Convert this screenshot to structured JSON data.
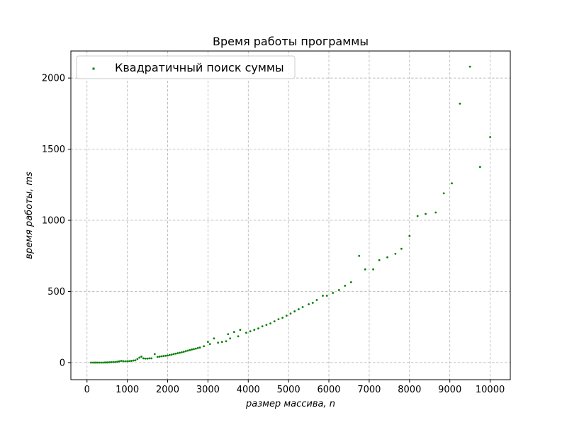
{
  "chart_data": {
    "type": "scatter",
    "title": "Время работы программы",
    "xlabel": "размер массива, n",
    "ylabel": "время работы, ms",
    "xlim": [
      -400,
      10500
    ],
    "ylim": [
      -120,
      2190
    ],
    "x_ticks": [
      0,
      1000,
      2000,
      3000,
      4000,
      5000,
      6000,
      7000,
      8000,
      9000,
      10000
    ],
    "y_ticks": [
      0,
      500,
      1000,
      1500,
      2000
    ],
    "grid": true,
    "legend_position": "top-left",
    "series": [
      {
        "name": "Квадратичный поиск суммы",
        "color": "#008000",
        "points": [
          [
            100,
            0
          ],
          [
            150,
            0
          ],
          [
            200,
            0
          ],
          [
            250,
            0
          ],
          [
            300,
            0
          ],
          [
            350,
            0
          ],
          [
            400,
            0
          ],
          [
            450,
            1
          ],
          [
            500,
            1
          ],
          [
            550,
            2
          ],
          [
            600,
            3
          ],
          [
            650,
            4
          ],
          [
            700,
            4
          ],
          [
            750,
            6
          ],
          [
            800,
            9
          ],
          [
            850,
            12
          ],
          [
            900,
            10
          ],
          [
            950,
            9
          ],
          [
            1000,
            10
          ],
          [
            1050,
            10
          ],
          [
            1100,
            12
          ],
          [
            1150,
            14
          ],
          [
            1200,
            16
          ],
          [
            1250,
            25
          ],
          [
            1300,
            35
          ],
          [
            1350,
            42
          ],
          [
            1400,
            30
          ],
          [
            1450,
            28
          ],
          [
            1500,
            28
          ],
          [
            1550,
            30
          ],
          [
            1600,
            30
          ],
          [
            1680,
            60
          ],
          [
            1750,
            40
          ],
          [
            1800,
            42
          ],
          [
            1850,
            44
          ],
          [
            1900,
            46
          ],
          [
            1950,
            48
          ],
          [
            2000,
            50
          ],
          [
            2050,
            53
          ],
          [
            2100,
            56
          ],
          [
            2150,
            60
          ],
          [
            2200,
            63
          ],
          [
            2250,
            66
          ],
          [
            2300,
            69
          ],
          [
            2350,
            72
          ],
          [
            2400,
            76
          ],
          [
            2450,
            80
          ],
          [
            2500,
            84
          ],
          [
            2550,
            88
          ],
          [
            2600,
            92
          ],
          [
            2650,
            95
          ],
          [
            2700,
            98
          ],
          [
            2750,
            102
          ],
          [
            2800,
            106
          ],
          [
            2900,
            115
          ],
          [
            3000,
            145
          ],
          [
            3050,
            130
          ],
          [
            3150,
            170
          ],
          [
            3250,
            140
          ],
          [
            3350,
            145
          ],
          [
            3450,
            150
          ],
          [
            3500,
            200
          ],
          [
            3550,
            170
          ],
          [
            3650,
            215
          ],
          [
            3750,
            185
          ],
          [
            3800,
            230
          ],
          [
            3950,
            210
          ],
          [
            4050,
            220
          ],
          [
            4150,
            230
          ],
          [
            4250,
            240
          ],
          [
            4350,
            255
          ],
          [
            4450,
            265
          ],
          [
            4550,
            275
          ],
          [
            4650,
            290
          ],
          [
            4750,
            305
          ],
          [
            4850,
            315
          ],
          [
            4950,
            330
          ],
          [
            5050,
            345
          ],
          [
            5150,
            360
          ],
          [
            5250,
            375
          ],
          [
            5350,
            390
          ],
          [
            5500,
            410
          ],
          [
            5600,
            420
          ],
          [
            5700,
            440
          ],
          [
            5850,
            470
          ],
          [
            5950,
            470
          ],
          [
            6100,
            490
          ],
          [
            6250,
            510
          ],
          [
            6400,
            540
          ],
          [
            6550,
            565
          ],
          [
            6750,
            750
          ],
          [
            6900,
            655
          ],
          [
            7100,
            655
          ],
          [
            7250,
            720
          ],
          [
            7450,
            740
          ],
          [
            7650,
            765
          ],
          [
            7800,
            800
          ],
          [
            8000,
            890
          ],
          [
            8200,
            1030
          ],
          [
            8400,
            1045
          ],
          [
            8650,
            1055
          ],
          [
            8850,
            1190
          ],
          [
            9050,
            1260
          ],
          [
            9250,
            1820
          ],
          [
            9500,
            2080
          ],
          [
            9750,
            1375
          ],
          [
            10000,
            1585
          ]
        ]
      }
    ]
  }
}
